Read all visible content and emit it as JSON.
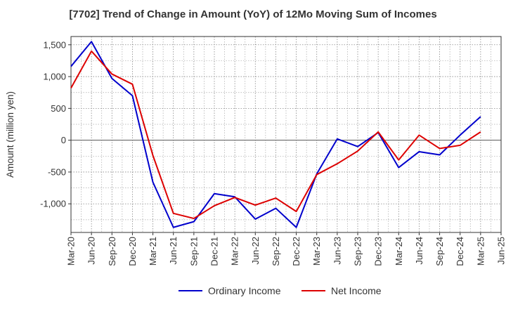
{
  "chart_data": {
    "type": "line",
    "title": "[7702]  Trend of Change in Amount (YoY) of 12Mo Moving Sum of Incomes",
    "xlabel": "",
    "ylabel": "Amount (million yen)",
    "categories": [
      "Mar-20",
      "Jun-20",
      "Sep-20",
      "Dec-20",
      "Mar-21",
      "Jun-21",
      "Sep-21",
      "Dec-21",
      "Mar-22",
      "Jun-22",
      "Sep-22",
      "Dec-22",
      "Mar-23",
      "Jun-23",
      "Sep-23",
      "Dec-23",
      "Mar-24",
      "Jun-24",
      "Sep-24",
      "Dec-24",
      "Mar-25",
      "Jun-25"
    ],
    "ylim": [
      -1450,
      1630
    ],
    "yticks": [
      -1000,
      -500,
      0,
      500,
      1000,
      1500
    ],
    "ytick_labels": [
      "-1,000",
      "-500",
      "0",
      "500",
      "1,000",
      "1,500"
    ],
    "grid": true,
    "legend_position": "bottom-center",
    "series": [
      {
        "name": "Ordinary Income",
        "color": "#0000cc",
        "values": [
          1160,
          1550,
          970,
          700,
          -660,
          -1370,
          -1280,
          -840,
          -890,
          -1240,
          -1070,
          -1370,
          -530,
          20,
          -100,
          120,
          -430,
          -180,
          -230,
          80,
          370,
          null
        ]
      },
      {
        "name": "Net Income",
        "color": "#dd0000",
        "values": [
          820,
          1400,
          1040,
          880,
          -240,
          -1150,
          -1230,
          -1030,
          -900,
          -1020,
          -910,
          -1120,
          -540,
          -370,
          -170,
          130,
          -310,
          80,
          -130,
          -80,
          130,
          null
        ]
      }
    ]
  }
}
